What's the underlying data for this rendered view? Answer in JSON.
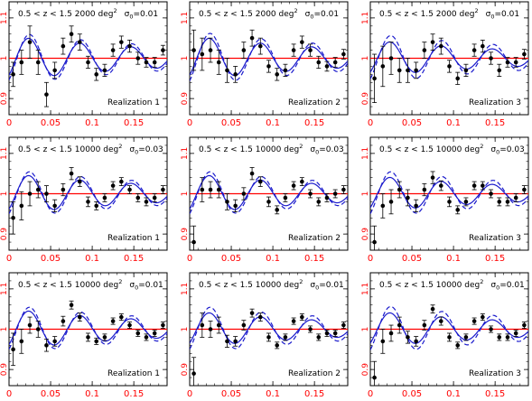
{
  "figure": {
    "x_ticks": [
      0,
      0.05,
      0.1,
      0.15
    ],
    "x_tick_labels": [
      "0",
      "0.05",
      "0.1",
      "0.15"
    ],
    "y_ticks": [
      0.9,
      1,
      1.1
    ],
    "y_tick_labels": [
      "0.9",
      "1",
      "1.1"
    ],
    "xlim": [
      0,
      0.19
    ],
    "ylim": [
      0.86,
      1.14
    ],
    "colors": {
      "frame": "#000000",
      "tick_labels": "#ff0000",
      "reference_line": "#ff0000",
      "data": "#000000",
      "model_solid": "#1a1acc",
      "model_dashed": "#1a1acc"
    }
  },
  "panels": [
    {
      "title": "0.5 < z < 1.5  2000 deg",
      "sup": "2",
      "sigma": "σ",
      "sigma_sub": "0",
      "sigma_val": "=0.01",
      "realization": "Realization 1"
    },
    {
      "title": "0.5 < z < 1.5  2000 deg",
      "sup": "2",
      "sigma": "σ",
      "sigma_sub": "0",
      "sigma_val": "=0.01",
      "realization": "Realization 2"
    },
    {
      "title": "0.5 < z < 1.5  2000 deg",
      "sup": "2",
      "sigma": "σ",
      "sigma_sub": "0",
      "sigma_val": "=0.01",
      "realization": "Realization 3"
    },
    {
      "title": "0.5 < z < 1.5  10000 deg",
      "sup": "2",
      "sigma": "σ",
      "sigma_sub": "0",
      "sigma_val": "=0.03",
      "realization": "Realization 1"
    },
    {
      "title": "0.5 < z < 1.5  10000 deg",
      "sup": "2",
      "sigma": "σ",
      "sigma_sub": "0",
      "sigma_val": "=0.03",
      "realization": "Realization 2"
    },
    {
      "title": "0.5 < z < 1.5  10000 deg",
      "sup": "2",
      "sigma": "σ",
      "sigma_sub": "0",
      "sigma_val": "=0.03",
      "realization": "Realization 3"
    },
    {
      "title": "0.5 < z < 1.5  10000 deg",
      "sup": "2",
      "sigma": "σ",
      "sigma_sub": "0",
      "sigma_val": "=0.01",
      "realization": "Realization 1"
    },
    {
      "title": "0.5 < z < 1.5  10000 deg",
      "sup": "2",
      "sigma": "σ",
      "sigma_sub": "0",
      "sigma_val": "=0.01",
      "realization": "Realization 2"
    },
    {
      "title": "0.5 < z < 1.5  10000 deg",
      "sup": "2",
      "sigma": "σ",
      "sigma_sub": "0",
      "sigma_val": "=0.01",
      "realization": "Realization 3"
    }
  ],
  "chart_data": {
    "type": "scatter",
    "xlim": [
      0,
      0.19
    ],
    "ylim": [
      0.86,
      1.14
    ],
    "reference_line": 1,
    "panels": [
      {
        "points": [
          [
            0.005,
            0.96,
            0.03
          ],
          [
            0.015,
            0.99,
            0.03
          ],
          [
            0.025,
            1.04,
            0.04
          ],
          [
            0.035,
            0.99,
            0.03
          ],
          [
            0.045,
            0.91,
            0.03
          ],
          [
            0.055,
            0.97,
            0.02
          ],
          [
            0.065,
            1.03,
            0.02
          ],
          [
            0.075,
            1.06,
            0.02
          ],
          [
            0.085,
            1.04,
            0.02
          ],
          [
            0.095,
            0.99,
            0.015
          ],
          [
            0.105,
            0.96,
            0.015
          ],
          [
            0.115,
            0.97,
            0.015
          ],
          [
            0.125,
            1.02,
            0.015
          ],
          [
            0.135,
            1.04,
            0.015
          ],
          [
            0.145,
            1.03,
            0.015
          ],
          [
            0.155,
            1.0,
            0.015
          ],
          [
            0.165,
            0.99,
            0.012
          ],
          [
            0.175,
            0.99,
            0.012
          ],
          [
            0.185,
            1.02,
            0.012
          ]
        ],
        "solid": {
          "amp": 0.055,
          "k": 0.0615,
          "phase": 0.0085,
          "decay": 4.5
        },
        "dashed": {
          "amp": 0.065,
          "k": 0.0615,
          "phase": 0.0095,
          "decay": 4.0
        }
      },
      {
        "points": [
          [
            0.005,
            1.02,
            0.05
          ],
          [
            0.015,
            1.01,
            0.04
          ],
          [
            0.025,
            1.02,
            0.03
          ],
          [
            0.035,
            0.99,
            0.03
          ],
          [
            0.045,
            0.97,
            0.03
          ],
          [
            0.055,
            0.96,
            0.02
          ],
          [
            0.065,
            1.02,
            0.02
          ],
          [
            0.075,
            1.05,
            0.02
          ],
          [
            0.085,
            1.03,
            0.02
          ],
          [
            0.095,
            0.98,
            0.015
          ],
          [
            0.105,
            0.96,
            0.015
          ],
          [
            0.115,
            0.97,
            0.015
          ],
          [
            0.125,
            1.02,
            0.015
          ],
          [
            0.135,
            1.04,
            0.015
          ],
          [
            0.145,
            1.02,
            0.015
          ],
          [
            0.155,
            0.99,
            0.015
          ],
          [
            0.165,
            0.98,
            0.012
          ],
          [
            0.175,
            0.99,
            0.012
          ],
          [
            0.185,
            1.01,
            0.012
          ]
        ],
        "solid": {
          "amp": 0.055,
          "k": 0.0615,
          "phase": 0.0085,
          "decay": 4.5
        },
        "dashed": {
          "amp": 0.068,
          "k": 0.0615,
          "phase": 0.0095,
          "decay": 4.0
        }
      },
      {
        "points": [
          [
            0.005,
            0.95,
            0.06
          ],
          [
            0.015,
            0.98,
            0.05
          ],
          [
            0.025,
            1.0,
            0.04
          ],
          [
            0.035,
            0.97,
            0.03
          ],
          [
            0.045,
            0.97,
            0.03
          ],
          [
            0.055,
            0.97,
            0.02
          ],
          [
            0.065,
            1.02,
            0.02
          ],
          [
            0.075,
            1.04,
            0.02
          ],
          [
            0.085,
            1.03,
            0.02
          ],
          [
            0.095,
            0.98,
            0.015
          ],
          [
            0.105,
            0.95,
            0.015
          ],
          [
            0.115,
            0.97,
            0.015
          ],
          [
            0.125,
            1.02,
            0.015
          ],
          [
            0.135,
            1.03,
            0.015
          ],
          [
            0.145,
            1.0,
            0.015
          ],
          [
            0.155,
            0.97,
            0.015
          ],
          [
            0.165,
            0.99,
            0.012
          ],
          [
            0.175,
            0.99,
            0.012
          ],
          [
            0.185,
            1.01,
            0.012
          ]
        ],
        "solid": {
          "amp": 0.045,
          "k": 0.0615,
          "phase": 0.0085,
          "decay": 4.5
        },
        "dashed": {
          "amp": 0.062,
          "k": 0.0615,
          "phase": 0.0095,
          "decay": 4.0
        }
      },
      {
        "points": [
          [
            0.005,
            0.94,
            0.04
          ],
          [
            0.015,
            0.97,
            0.035
          ],
          [
            0.025,
            1.0,
            0.03
          ],
          [
            0.035,
            1.01,
            0.02
          ],
          [
            0.045,
            1.0,
            0.02
          ],
          [
            0.055,
            0.97,
            0.015
          ],
          [
            0.065,
            1.01,
            0.015
          ],
          [
            0.075,
            1.05,
            0.015
          ],
          [
            0.085,
            1.03,
            0.012
          ],
          [
            0.095,
            0.98,
            0.012
          ],
          [
            0.105,
            0.97,
            0.01
          ],
          [
            0.115,
            0.99,
            0.01
          ],
          [
            0.125,
            1.02,
            0.01
          ],
          [
            0.135,
            1.03,
            0.01
          ],
          [
            0.145,
            1.01,
            0.01
          ],
          [
            0.155,
            0.99,
            0.01
          ],
          [
            0.165,
            0.98,
            0.01
          ],
          [
            0.175,
            0.99,
            0.01
          ],
          [
            0.185,
            1.01,
            0.01
          ]
        ],
        "solid": {
          "amp": 0.05,
          "k": 0.0615,
          "phase": 0.0085,
          "decay": 4.5
        },
        "dashed": {
          "amp": 0.06,
          "k": 0.0615,
          "phase": 0.0095,
          "decay": 4.0
        }
      },
      {
        "points": [
          [
            0.005,
            0.88,
            0.04
          ],
          [
            0.015,
            1.01,
            0.03
          ],
          [
            0.025,
            1.01,
            0.02
          ],
          [
            0.035,
            1.01,
            0.02
          ],
          [
            0.045,
            0.98,
            0.02
          ],
          [
            0.055,
            0.97,
            0.015
          ],
          [
            0.065,
            1.0,
            0.015
          ],
          [
            0.075,
            1.05,
            0.015
          ],
          [
            0.085,
            1.03,
            0.012
          ],
          [
            0.095,
            0.98,
            0.012
          ],
          [
            0.105,
            0.96,
            0.01
          ],
          [
            0.115,
            0.99,
            0.01
          ],
          [
            0.125,
            1.02,
            0.01
          ],
          [
            0.135,
            1.03,
            0.01
          ],
          [
            0.145,
            1.0,
            0.01
          ],
          [
            0.155,
            0.98,
            0.01
          ],
          [
            0.165,
            0.99,
            0.01
          ],
          [
            0.175,
            1.0,
            0.01
          ],
          [
            0.185,
            1.01,
            0.01
          ]
        ],
        "solid": {
          "amp": 0.05,
          "k": 0.0615,
          "phase": 0.0085,
          "decay": 4.5
        },
        "dashed": {
          "amp": 0.06,
          "k": 0.0615,
          "phase": 0.0095,
          "decay": 4.0
        }
      },
      {
        "points": [
          [
            0.005,
            0.88,
            0.04
          ],
          [
            0.015,
            0.97,
            0.03
          ],
          [
            0.025,
            0.98,
            0.03
          ],
          [
            0.035,
            1.01,
            0.02
          ],
          [
            0.045,
            0.99,
            0.02
          ],
          [
            0.055,
            0.97,
            0.015
          ],
          [
            0.065,
            1.01,
            0.015
          ],
          [
            0.075,
            1.04,
            0.015
          ],
          [
            0.085,
            1.02,
            0.012
          ],
          [
            0.095,
            0.98,
            0.012
          ],
          [
            0.105,
            0.96,
            0.01
          ],
          [
            0.115,
            0.98,
            0.01
          ],
          [
            0.125,
            1.02,
            0.01
          ],
          [
            0.135,
            1.02,
            0.01
          ],
          [
            0.145,
            1.0,
            0.01
          ],
          [
            0.155,
            0.98,
            0.01
          ],
          [
            0.165,
            0.98,
            0.01
          ],
          [
            0.175,
            0.99,
            0.01
          ],
          [
            0.185,
            1.01,
            0.01
          ]
        ],
        "solid": {
          "amp": 0.045,
          "k": 0.0615,
          "phase": 0.0085,
          "decay": 4.5
        },
        "dashed": {
          "amp": 0.06,
          "k": 0.0615,
          "phase": 0.0095,
          "decay": 4.0
        }
      },
      {
        "points": [
          [
            0.005,
            0.95,
            0.04
          ],
          [
            0.015,
            0.97,
            0.03
          ],
          [
            0.025,
            1.01,
            0.02
          ],
          [
            0.035,
            1.0,
            0.02
          ],
          [
            0.045,
            0.96,
            0.015
          ],
          [
            0.055,
            0.97,
            0.012
          ],
          [
            0.065,
            1.02,
            0.012
          ],
          [
            0.075,
            1.06,
            0.01
          ],
          [
            0.085,
            1.03,
            0.01
          ],
          [
            0.095,
            0.98,
            0.01
          ],
          [
            0.105,
            0.97,
            0.008
          ],
          [
            0.115,
            0.98,
            0.008
          ],
          [
            0.125,
            1.02,
            0.008
          ],
          [
            0.135,
            1.03,
            0.008
          ],
          [
            0.145,
            1.01,
            0.008
          ],
          [
            0.155,
            0.99,
            0.008
          ],
          [
            0.165,
            0.98,
            0.008
          ],
          [
            0.175,
            0.99,
            0.008
          ],
          [
            0.185,
            1.01,
            0.008
          ]
        ],
        "solid": {
          "amp": 0.05,
          "k": 0.0615,
          "phase": 0.0085,
          "decay": 4.5
        },
        "dashed": {
          "amp": 0.06,
          "k": 0.0615,
          "phase": 0.0095,
          "decay": 4.0
        }
      },
      {
        "points": [
          [
            0.005,
            0.89,
            0.04
          ],
          [
            0.015,
            1.01,
            0.03
          ],
          [
            0.025,
            1.0,
            0.02
          ],
          [
            0.035,
            1.01,
            0.02
          ],
          [
            0.045,
            0.97,
            0.015
          ],
          [
            0.055,
            0.97,
            0.012
          ],
          [
            0.065,
            1.01,
            0.012
          ],
          [
            0.075,
            1.04,
            0.01
          ],
          [
            0.085,
            1.03,
            0.01
          ],
          [
            0.095,
            0.98,
            0.01
          ],
          [
            0.105,
            0.96,
            0.008
          ],
          [
            0.115,
            0.98,
            0.008
          ],
          [
            0.125,
            1.02,
            0.008
          ],
          [
            0.135,
            1.03,
            0.008
          ],
          [
            0.145,
            1.0,
            0.008
          ],
          [
            0.155,
            0.98,
            0.008
          ],
          [
            0.165,
            0.99,
            0.008
          ],
          [
            0.175,
            0.99,
            0.008
          ],
          [
            0.185,
            1.01,
            0.008
          ]
        ],
        "solid": {
          "amp": 0.045,
          "k": 0.0615,
          "phase": 0.0085,
          "decay": 4.5
        },
        "dashed": {
          "amp": 0.06,
          "k": 0.0615,
          "phase": 0.0095,
          "decay": 4.0
        }
      },
      {
        "points": [
          [
            0.005,
            0.88,
            0.04
          ],
          [
            0.015,
            0.97,
            0.03
          ],
          [
            0.025,
            0.99,
            0.02
          ],
          [
            0.035,
            1.01,
            0.02
          ],
          [
            0.045,
            0.98,
            0.015
          ],
          [
            0.055,
            0.97,
            0.012
          ],
          [
            0.065,
            1.01,
            0.012
          ],
          [
            0.075,
            1.05,
            0.01
          ],
          [
            0.085,
            1.02,
            0.01
          ],
          [
            0.095,
            0.98,
            0.01
          ],
          [
            0.105,
            0.96,
            0.008
          ],
          [
            0.115,
            0.98,
            0.008
          ],
          [
            0.125,
            1.02,
            0.008
          ],
          [
            0.135,
            1.03,
            0.008
          ],
          [
            0.145,
            1.0,
            0.008
          ],
          [
            0.155,
            0.98,
            0.008
          ],
          [
            0.165,
            0.98,
            0.008
          ],
          [
            0.175,
            0.99,
            0.008
          ],
          [
            0.185,
            1.01,
            0.008
          ]
        ],
        "solid": {
          "amp": 0.045,
          "k": 0.0615,
          "phase": 0.0085,
          "decay": 4.5
        },
        "dashed": {
          "amp": 0.062,
          "k": 0.0615,
          "phase": 0.0095,
          "decay": 4.0
        }
      }
    ]
  }
}
